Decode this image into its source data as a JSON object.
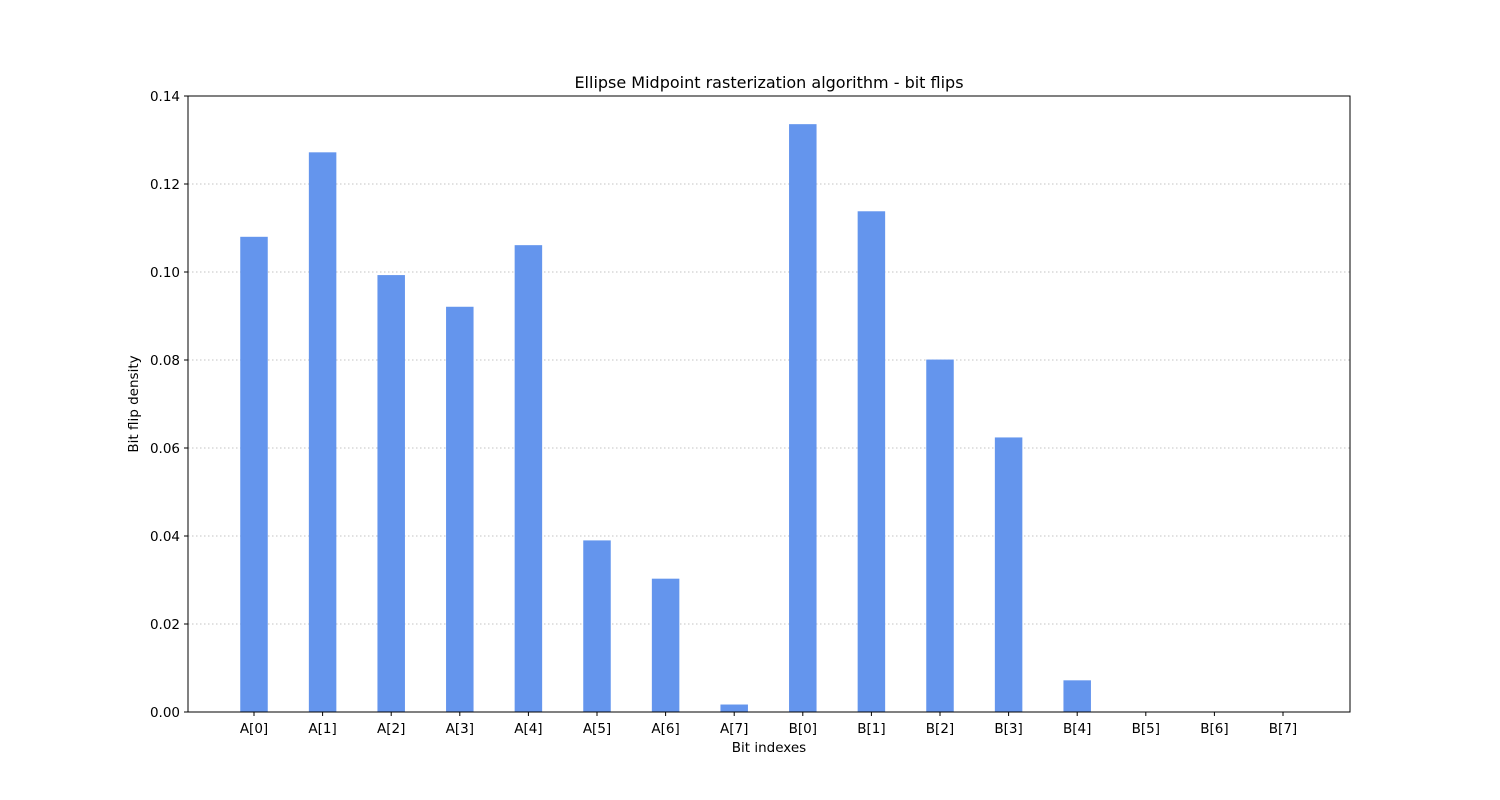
{
  "chart_data": {
    "type": "bar",
    "title": "Ellipse Midpoint rasterization algorithm - bit flips",
    "xlabel": "Bit indexes",
    "ylabel": "Bit flip density",
    "categories": [
      "A[0]",
      "A[1]",
      "A[2]",
      "A[3]",
      "A[4]",
      "A[5]",
      "A[6]",
      "A[7]",
      "B[0]",
      "B[1]",
      "B[2]",
      "B[3]",
      "B[4]",
      "B[5]",
      "B[6]",
      "B[7]"
    ],
    "values": [
      0.108,
      0.1272,
      0.0993,
      0.0921,
      0.1061,
      0.039,
      0.0303,
      0.0017,
      0.1336,
      0.1138,
      0.0801,
      0.0624,
      0.0072,
      0.0,
      0.0,
      0.0
    ],
    "ylim": [
      0,
      0.14
    ],
    "yticks": [
      0.0,
      0.02,
      0.04,
      0.06,
      0.08,
      0.1,
      0.12,
      0.14
    ],
    "ytick_labels": [
      "0.00",
      "0.02",
      "0.04",
      "0.06",
      "0.08",
      "0.10",
      "0.12",
      "0.14"
    ],
    "grid": {
      "y": true,
      "x": false,
      "style": "dotted"
    },
    "bar_color": "#6495ed"
  }
}
